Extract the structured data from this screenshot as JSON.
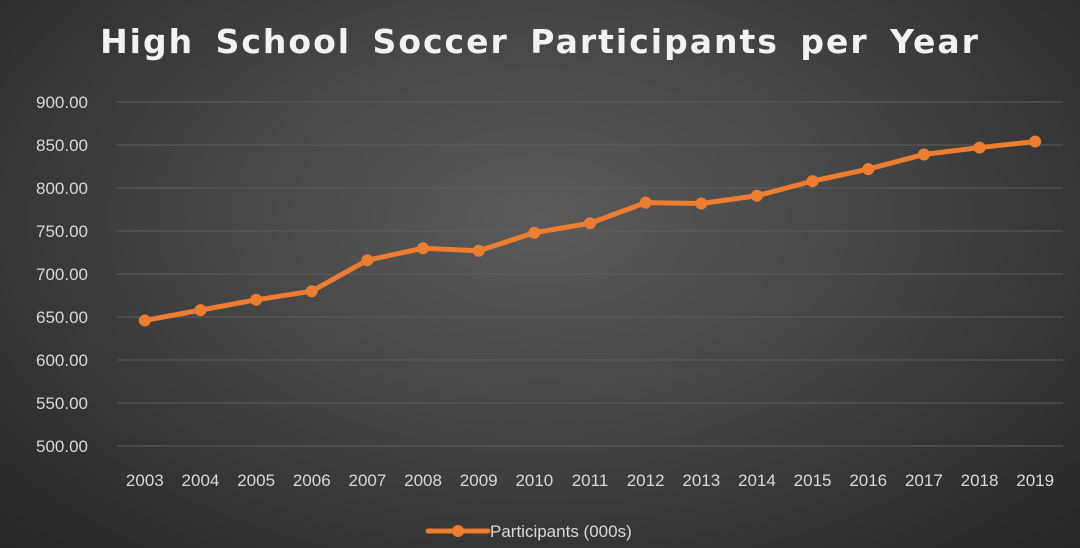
{
  "chart_data": {
    "type": "line",
    "title": "High School Soccer Participants per Year",
    "xlabel": "",
    "ylabel": "",
    "ylim": [
      500,
      900
    ],
    "yticks": [
      "500.00",
      "550.00",
      "600.00",
      "650.00",
      "700.00",
      "750.00",
      "800.00",
      "850.00",
      "900.00"
    ],
    "grid": true,
    "legend_position": "bottom",
    "categories": [
      "2003",
      "2004",
      "2005",
      "2006",
      "2007",
      "2008",
      "2009",
      "2010",
      "2011",
      "2012",
      "2013",
      "2014",
      "2015",
      "2016",
      "2017",
      "2018",
      "2019"
    ],
    "series": [
      {
        "name": "Participants (000s)",
        "color": "#ed7d31",
        "values": [
          646,
          658,
          670,
          680,
          716,
          730,
          727,
          748,
          759,
          783,
          782,
          791,
          808,
          822,
          839,
          847,
          854
        ]
      }
    ]
  }
}
